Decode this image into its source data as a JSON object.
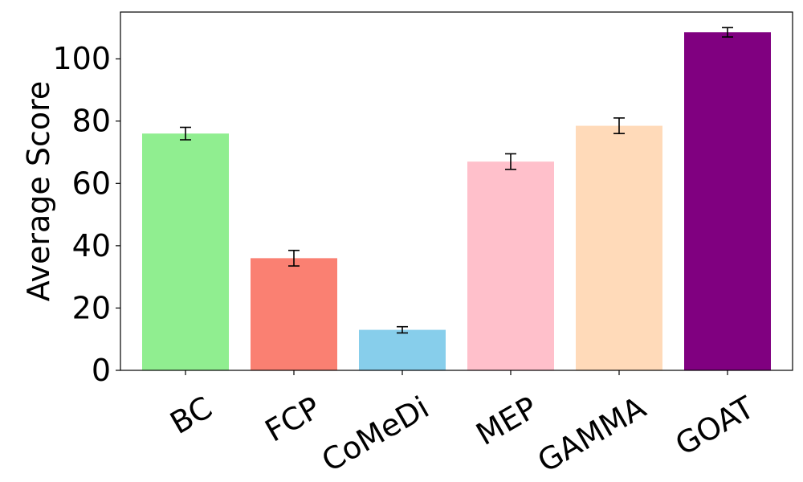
{
  "chart_data": {
    "type": "bar",
    "title": "",
    "xlabel": "",
    "ylabel": "Average Score",
    "categories": [
      "BC",
      "FCP",
      "CoMeDi",
      "MEP",
      "GAMMA",
      "GOAT"
    ],
    "values": [
      76,
      36,
      13,
      67,
      78.5,
      108.5
    ],
    "error": [
      2,
      2.5,
      1,
      2.5,
      2.5,
      1.5
    ],
    "colors": [
      "#90ee90",
      "#fa8072",
      "#87ceeb",
      "#ffc0cb",
      "#ffdab9",
      "#800080"
    ],
    "ylim": [
      0,
      115
    ],
    "yticks": [
      0,
      20,
      40,
      60,
      80,
      100
    ],
    "grid": false,
    "legend": "none"
  }
}
